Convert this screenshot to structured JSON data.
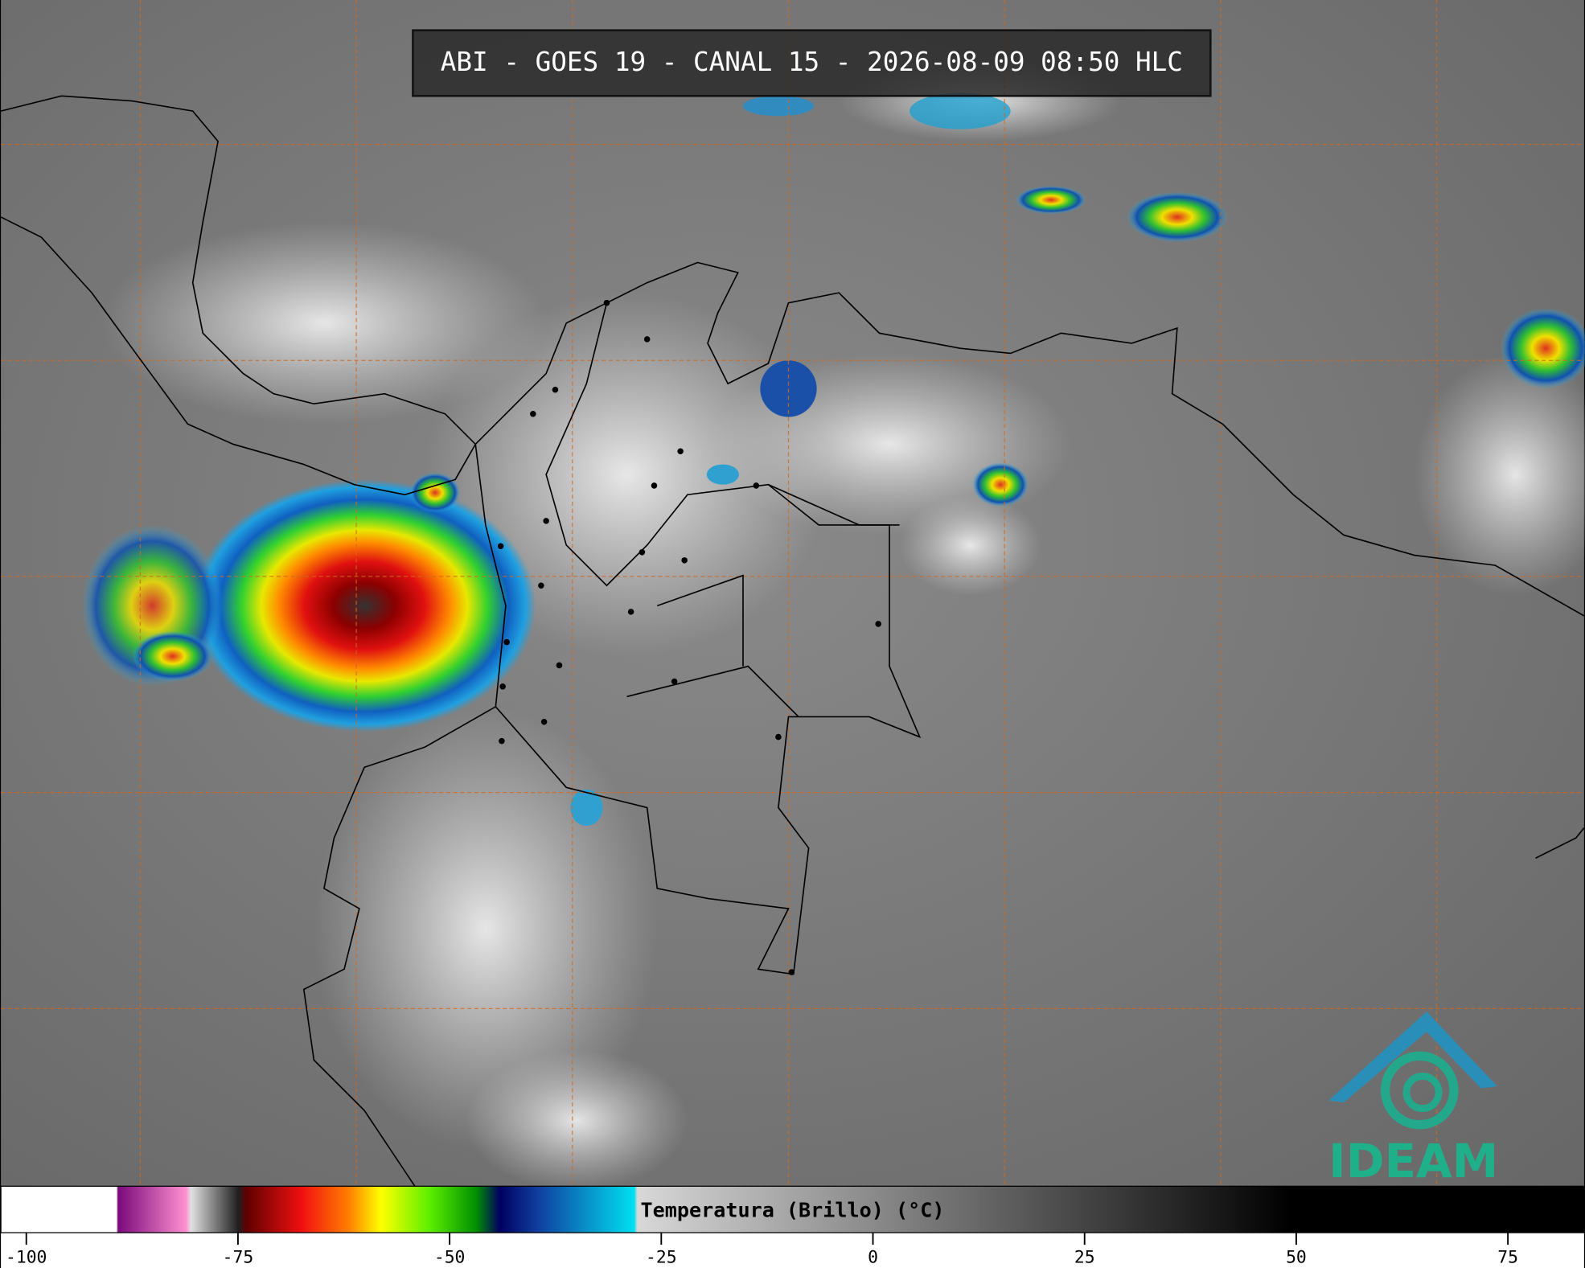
{
  "header": {
    "title": "ABI - GOES 19 - CANAL 15 - 2026-08-09 08:50 HLC"
  },
  "colorbar": {
    "label": "Temperatura (Brillo) (°C)",
    "lim": [
      -103,
      84
    ],
    "ticks": [
      -100,
      -75,
      -50,
      -25,
      0,
      25,
      50,
      75
    ]
  },
  "logo": {
    "text": "IDEAM"
  }
}
